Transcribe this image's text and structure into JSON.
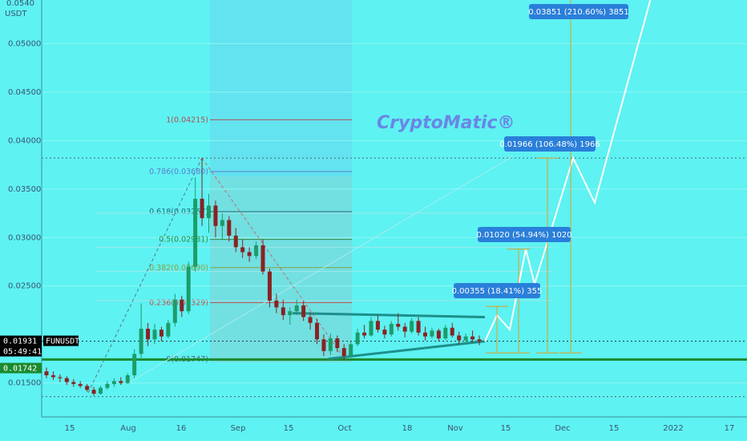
{
  "chart_data": {
    "type": "candlestick",
    "symbol": "FUNUSDT",
    "quote_unit": "USDT",
    "watermark": "CryptoMatic®",
    "y_axis": {
      "ticks": [
        "0.05000",
        "0.04500",
        "0.04000",
        "0.03500",
        "0.03000",
        "0.02500",
        "0.01500"
      ],
      "top_label": "0.0540",
      "range": [
        0.0115,
        0.0545
      ]
    },
    "x_axis": {
      "ticks": [
        "15",
        "Aug",
        "16",
        "Sep",
        "15",
        "Oct",
        "18",
        "Nov",
        "15",
        "Dec",
        "15",
        "2022",
        "17"
      ]
    },
    "price_tags": [
      {
        "value": "0.01931",
        "label": "FUNUSDT",
        "timer": "05:49:41",
        "color": "#000000"
      },
      {
        "value": "0.01742",
        "color": "#1b8a2e"
      }
    ],
    "fib_levels": [
      {
        "label": "1(0.04215)",
        "ratio": 1,
        "price": 0.04215,
        "color": "#b05050"
      },
      {
        "label": "0.786(0.03680)",
        "ratio": 0.786,
        "price": 0.0368,
        "color": "#5a7fd0"
      },
      {
        "label": "0.618(0.03267)",
        "ratio": 0.618,
        "price": 0.03267,
        "color": "#1f6a78"
      },
      {
        "label": "0.5(0.02981)",
        "ratio": 0.5,
        "price": 0.02981,
        "color": "#3a8a3a"
      },
      {
        "label": "0.382(0.02690)",
        "ratio": 0.382,
        "price": 0.0269,
        "color": "#8aa040"
      },
      {
        "label": "0.236(0.02329)",
        "ratio": 0.236,
        "price": 0.02329,
        "color": "#c05050"
      },
      {
        "label": "0(0.01747)",
        "ratio": 0,
        "price": 0.01747,
        "color": "#556677"
      }
    ],
    "targets": [
      {
        "label": "0.00355 (18.41%) 355",
        "price": 0.0229
      },
      {
        "label": "0.01020 (54.94%) 1020",
        "price": 0.0288
      },
      {
        "label": "0.01966 (106.48%) 1966",
        "price": 0.0382
      },
      {
        "label": "0.03851 (210.60%) 3851",
        "price": 0.0565
      }
    ],
    "support_price": 0.01742,
    "current_price": 0.01931,
    "candles": [
      [
        0.0162,
        0.0166,
        0.0155,
        0.0158
      ],
      [
        0.0158,
        0.0162,
        0.0153,
        0.0156
      ],
      [
        0.0156,
        0.0159,
        0.0151,
        0.0155
      ],
      [
        0.0155,
        0.0157,
        0.0148,
        0.0151
      ],
      [
        0.0151,
        0.0154,
        0.0146,
        0.0149
      ],
      [
        0.0149,
        0.0152,
        0.0145,
        0.0147
      ],
      [
        0.0147,
        0.0149,
        0.0141,
        0.0143
      ],
      [
        0.0143,
        0.0146,
        0.0137,
        0.0139
      ],
      [
        0.0139,
        0.0147,
        0.0138,
        0.0145
      ],
      [
        0.0145,
        0.0152,
        0.0143,
        0.0149
      ],
      [
        0.0149,
        0.0155,
        0.0146,
        0.0152
      ],
      [
        0.0152,
        0.0156,
        0.0148,
        0.015
      ],
      [
        0.015,
        0.016,
        0.0149,
        0.0158
      ],
      [
        0.0158,
        0.0185,
        0.0155,
        0.018
      ],
      [
        0.018,
        0.0232,
        0.0176,
        0.0206
      ],
      [
        0.0206,
        0.0212,
        0.0188,
        0.0195
      ],
      [
        0.0195,
        0.0211,
        0.019,
        0.0205
      ],
      [
        0.0205,
        0.0208,
        0.0193,
        0.0198
      ],
      [
        0.0198,
        0.0215,
        0.0196,
        0.0212
      ],
      [
        0.0212,
        0.0242,
        0.0208,
        0.0236
      ],
      [
        0.0236,
        0.024,
        0.0218,
        0.0224
      ],
      [
        0.0224,
        0.0275,
        0.0221,
        0.027
      ],
      [
        0.027,
        0.0362,
        0.0265,
        0.034
      ],
      [
        0.034,
        0.0382,
        0.0312,
        0.032
      ],
      [
        0.032,
        0.0345,
        0.0305,
        0.0333
      ],
      [
        0.0333,
        0.0338,
        0.03,
        0.0312
      ],
      [
        0.0312,
        0.0325,
        0.0298,
        0.0318
      ],
      [
        0.0318,
        0.0322,
        0.0296,
        0.0302
      ],
      [
        0.0302,
        0.031,
        0.0285,
        0.029
      ],
      [
        0.029,
        0.0298,
        0.0279,
        0.0285
      ],
      [
        0.0285,
        0.029,
        0.0275,
        0.0281
      ],
      [
        0.0281,
        0.0296,
        0.0278,
        0.0292
      ],
      [
        0.0292,
        0.0298,
        0.0262,
        0.0265
      ],
      [
        0.0265,
        0.0268,
        0.0228,
        0.0235
      ],
      [
        0.0235,
        0.0242,
        0.0222,
        0.0228
      ],
      [
        0.0228,
        0.0236,
        0.0215,
        0.022
      ],
      [
        0.022,
        0.0228,
        0.021,
        0.0224
      ],
      [
        0.0224,
        0.0236,
        0.022,
        0.023
      ],
      [
        0.023,
        0.0234,
        0.0214,
        0.0218
      ],
      [
        0.0218,
        0.0223,
        0.0205,
        0.0212
      ],
      [
        0.0212,
        0.0216,
        0.019,
        0.0195
      ],
      [
        0.0195,
        0.02,
        0.0178,
        0.0183
      ],
      [
        0.0183,
        0.0201,
        0.0179,
        0.0196
      ],
      [
        0.0196,
        0.0199,
        0.0182,
        0.0186
      ],
      [
        0.0186,
        0.019,
        0.0174,
        0.0178
      ],
      [
        0.0178,
        0.0193,
        0.0176,
        0.019
      ],
      [
        0.019,
        0.0206,
        0.0188,
        0.0202
      ],
      [
        0.0202,
        0.021,
        0.0196,
        0.0199
      ],
      [
        0.0199,
        0.0218,
        0.0198,
        0.0214
      ],
      [
        0.0214,
        0.022,
        0.0202,
        0.0205
      ],
      [
        0.0205,
        0.0209,
        0.0196,
        0.02
      ],
      [
        0.02,
        0.0214,
        0.0198,
        0.0211
      ],
      [
        0.0211,
        0.0222,
        0.0204,
        0.0208
      ],
      [
        0.0208,
        0.0212,
        0.0197,
        0.0203
      ],
      [
        0.0203,
        0.0217,
        0.0201,
        0.0214
      ],
      [
        0.0214,
        0.0218,
        0.0199,
        0.0202
      ],
      [
        0.0202,
        0.0208,
        0.0194,
        0.0198
      ],
      [
        0.0198,
        0.0207,
        0.0196,
        0.0204
      ],
      [
        0.0204,
        0.0206,
        0.0193,
        0.0196
      ],
      [
        0.0196,
        0.021,
        0.0194,
        0.0207
      ],
      [
        0.0207,
        0.0212,
        0.0197,
        0.0199
      ],
      [
        0.0199,
        0.0203,
        0.019,
        0.0194
      ],
      [
        0.0194,
        0.0201,
        0.0191,
        0.0198
      ],
      [
        0.0198,
        0.0204,
        0.0192,
        0.0195
      ],
      [
        0.0195,
        0.0199,
        0.0189,
        0.0193
      ]
    ]
  }
}
